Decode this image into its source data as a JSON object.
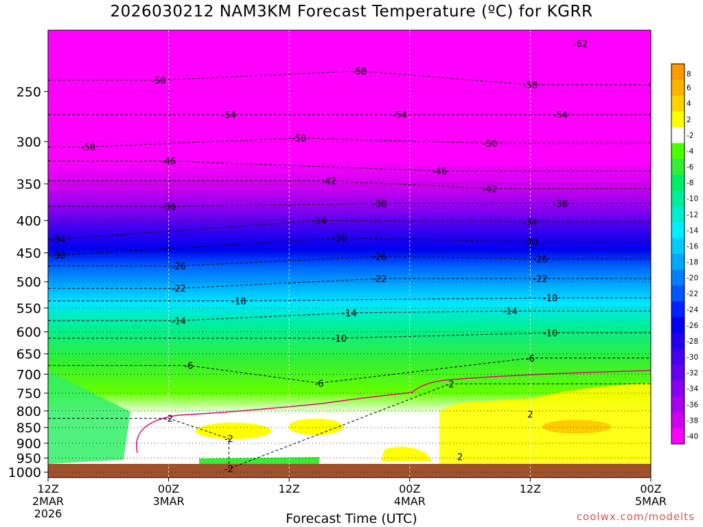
{
  "title": "2026030212 NAM3KM Forecast Temperature (ºC) for KGRR",
  "credit": "coolwx.com/modelts",
  "chart_data": {
    "type": "heatmap",
    "title": "2026030212 NAM3KM Forecast Temperature (ºC) for KGRR",
    "xlabel": "Forecast Time (UTC)",
    "ylabel": "",
    "x_ticks": [
      {
        "hour": 0,
        "lines": [
          "12Z",
          "2MAR",
          "2026"
        ]
      },
      {
        "hour": 12,
        "lines": [
          "00Z",
          "3MAR"
        ]
      },
      {
        "hour": 24,
        "lines": [
          "12Z"
        ]
      },
      {
        "hour": 36,
        "lines": [
          "00Z",
          "4MAR"
        ]
      },
      {
        "hour": 48,
        "lines": [
          "12Z"
        ]
      },
      {
        "hour": 60,
        "lines": [
          "00Z",
          "5MAR"
        ]
      }
    ],
    "y_ticks": [
      "250",
      "300",
      "350",
      "400",
      "450",
      "500",
      "550",
      "600",
      "650",
      "700",
      "750",
      "800",
      "850",
      "900",
      "950",
      "1000"
    ],
    "ylim": [
      200,
      1020
    ],
    "y_scale": "log",
    "colorbar_ticks": [
      "8",
      "6",
      "4",
      "2",
      "-2",
      "-4",
      "-6",
      "-8",
      "-10",
      "-12",
      "-14",
      "-16",
      "-18",
      "-20",
      "-22",
      "-24",
      "-26",
      "-28",
      "-30",
      "-32",
      "-34",
      "-36",
      "-38",
      "-40"
    ],
    "colorbar_colors": [
      "#ff9900",
      "#ffb400",
      "#ffd200",
      "#ffff00",
      "#ffffff",
      "#4cff00",
      "#33ee33",
      "#00ee66",
      "#00ee99",
      "#00eecc",
      "#00eeff",
      "#00ccff",
      "#00a8ff",
      "#0080ff",
      "#0055ff",
      "#0022ff",
      "#0000ee",
      "#2200ee",
      "#4400ee",
      "#6600ee",
      "#8800ee",
      "#aa00ee",
      "#cc00ee",
      "#ff00ff"
    ],
    "contours": [
      {
        "value": -62,
        "hour": 53,
        "p": 210
      },
      {
        "value": -58,
        "hour": 11,
        "p": 240
      },
      {
        "value": -58,
        "hour": 31,
        "p": 232
      },
      {
        "value": -58,
        "hour": 48,
        "p": 244
      },
      {
        "value": -54,
        "hour": 18,
        "p": 272
      },
      {
        "value": -54,
        "hour": 35,
        "p": 272
      },
      {
        "value": -54,
        "hour": 51,
        "p": 272
      },
      {
        "value": -50,
        "hour": 4,
        "p": 306
      },
      {
        "value": -50,
        "hour": 25,
        "p": 296
      },
      {
        "value": -50,
        "hour": 44,
        "p": 302
      },
      {
        "value": -46,
        "hour": 12,
        "p": 322
      },
      {
        "value": -46,
        "hour": 39,
        "p": 334
      },
      {
        "value": -42,
        "hour": 28,
        "p": 346
      },
      {
        "value": -42,
        "hour": 44,
        "p": 356
      },
      {
        "value": -38,
        "hour": 12,
        "p": 380
      },
      {
        "value": -38,
        "hour": 33,
        "p": 376
      },
      {
        "value": -38,
        "hour": 51,
        "p": 376
      },
      {
        "value": -34,
        "hour": 1,
        "p": 428
      },
      {
        "value": -34,
        "hour": 27,
        "p": 400
      },
      {
        "value": -34,
        "hour": 48,
        "p": 402
      },
      {
        "value": -30,
        "hour": 1,
        "p": 454
      },
      {
        "value": -30,
        "hour": 29,
        "p": 426
      },
      {
        "value": -30,
        "hour": 48,
        "p": 432
      },
      {
        "value": -26,
        "hour": 13,
        "p": 472
      },
      {
        "value": -26,
        "hour": 33,
        "p": 456
      },
      {
        "value": -26,
        "hour": 49,
        "p": 460
      },
      {
        "value": -22,
        "hour": 13,
        "p": 512
      },
      {
        "value": -22,
        "hour": 33,
        "p": 494
      },
      {
        "value": -22,
        "hour": 49,
        "p": 494
      },
      {
        "value": -18,
        "hour": 19,
        "p": 536
      },
      {
        "value": -18,
        "hour": 50,
        "p": 530
      },
      {
        "value": -14,
        "hour": 13,
        "p": 576
      },
      {
        "value": -14,
        "hour": 30,
        "p": 560
      },
      {
        "value": -14,
        "hour": 46,
        "p": 556
      },
      {
        "value": -10,
        "hour": 29,
        "p": 614
      },
      {
        "value": -10,
        "hour": 50,
        "p": 602
      },
      {
        "value": -6,
        "hour": 14,
        "p": 678
      },
      {
        "value": -6,
        "hour": 27,
        "p": 723
      },
      {
        "value": -6,
        "hour": 48,
        "p": 660
      },
      {
        "value": -2,
        "hour": 40,
        "p": 725
      },
      {
        "value": -2,
        "hour": 12,
        "p": 822
      },
      {
        "value": -2,
        "hour": 18,
        "p": 885
      },
      {
        "value": -2,
        "hour": 18,
        "p": 988
      },
      {
        "value": 2,
        "hour": 48,
        "p": 810
      },
      {
        "value": 2,
        "hour": 41,
        "p": 945
      }
    ]
  }
}
